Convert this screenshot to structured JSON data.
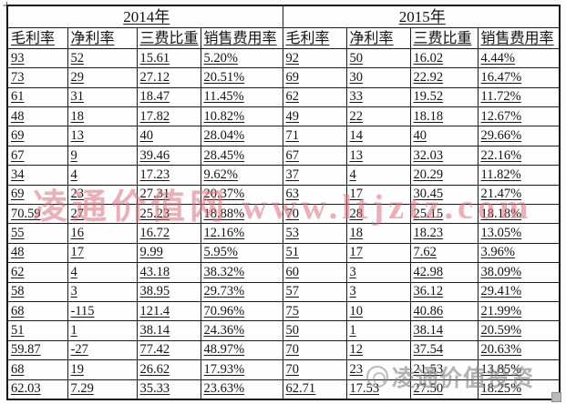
{
  "table": {
    "year_headers": [
      "2014年",
      "2015年"
    ],
    "column_headers": [
      "毛利率",
      "净利率",
      "三费比重",
      "销售费用率"
    ],
    "rows": [
      [
        "93",
        "52",
        "15.61",
        "5.20%",
        "92",
        "50",
        "16.02",
        "4.44%"
      ],
      [
        "73",
        "29",
        "27.12",
        "20.51%",
        "69",
        "30",
        "22.92",
        "16.47%"
      ],
      [
        "61",
        "31",
        "18.47",
        "11.45%",
        "62",
        "33",
        "19.52",
        "11.72%"
      ],
      [
        "48",
        "18",
        "17.82",
        "10.82%",
        "49",
        "22",
        "18.18",
        "12.67%"
      ],
      [
        "69",
        "13",
        "40",
        "28.04%",
        "71",
        "14",
        "40",
        "29.66%"
      ],
      [
        "67",
        "9",
        "39.46",
        "28.45%",
        "67",
        "13",
        "32.03",
        "22.16%"
      ],
      [
        "34",
        "4",
        "17.23",
        "9.62%",
        "37",
        "4",
        "20.29",
        "11.82%"
      ],
      [
        "69",
        "23",
        "27.31",
        "20.37%",
        "63",
        "17",
        "30.45",
        "21.47%"
      ],
      [
        "70.59",
        "27",
        "25.23",
        "18.88%",
        "70",
        "28",
        "25.15",
        "18.18%"
      ],
      [
        "55",
        "16",
        "16.72",
        "12.16%",
        "53",
        "18",
        "18.23",
        "13.05%"
      ],
      [
        "48",
        "17",
        "9.99",
        "5.95%",
        "51",
        "17",
        "7.62",
        "3.96%"
      ],
      [
        "62",
        "4",
        "43.18",
        "38.32%",
        "60",
        "3",
        "42.98",
        "38.09%"
      ],
      [
        "58",
        "3",
        "38.95",
        "29.73%",
        "57",
        "3",
        "36.12",
        "29.41%"
      ],
      [
        "68",
        "-115",
        "121.4",
        "70.96%",
        "75",
        "10",
        "40.86",
        "21.99%"
      ],
      [
        "51",
        "1",
        "38.14",
        "24.36%",
        "50",
        "1",
        "38.14",
        "20.59%"
      ],
      [
        "59.87",
        "-27",
        "77.42",
        "48.97%",
        "70",
        "12",
        "37.54",
        "20.63%"
      ],
      [
        "68",
        "19",
        "26.62",
        "17.93%",
        "70",
        "23",
        "21.53",
        "13.85%"
      ],
      [
        "62.03",
        "7.29",
        "35.33",
        "23.63%",
        "62.71",
        "17.53",
        "27.50",
        "18.25%"
      ]
    ]
  },
  "watermarks": {
    "center_text": "凌通价值网 www.ltjztz.com",
    "corner_text": "凌通价值投资",
    "center_color": "#de6e7a",
    "corner_color": "#7d7d7d"
  },
  "icons": {
    "table_move_handle": "✛"
  }
}
